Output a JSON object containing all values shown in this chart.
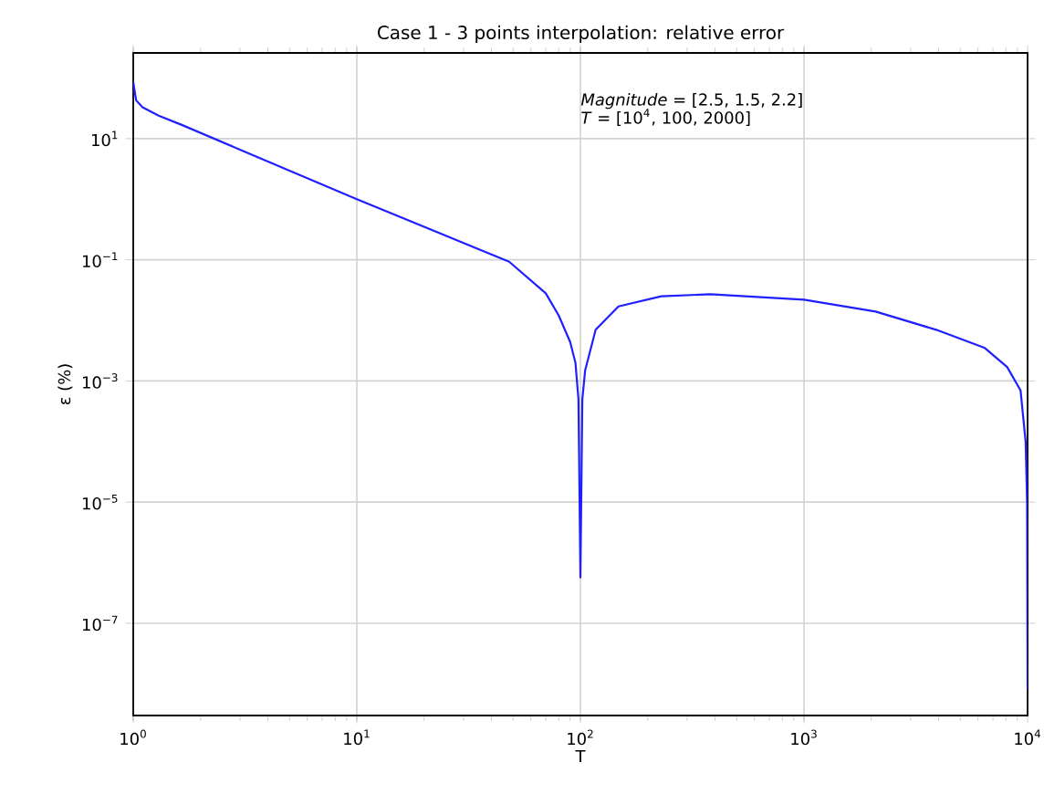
{
  "chart_data": {
    "type": "line",
    "title": "Case 1 - 3 points interpolation: relative error",
    "xlabel": "T",
    "ylabel": "ε  (%)",
    "log": "xy",
    "grid": true,
    "marker": "none",
    "line_style": "solid",
    "xlim": [
      1,
      10000
    ],
    "ylim": [
      3e-09,
      260
    ],
    "xticks": [
      {
        "value": 1,
        "label": "10$^{0}$"
      },
      {
        "value": 10,
        "label": "10$^{1}$"
      },
      {
        "value": 100,
        "label": "10$^{2}$"
      },
      {
        "value": 1000,
        "label": "10$^{3}$"
      },
      {
        "value": 10000,
        "label": "10$^{4}$"
      }
    ],
    "yticks": [
      {
        "value": 10,
        "label": "10$^{1}$"
      },
      {
        "value": 0.1,
        "label": "10$^{−1}$"
      },
      {
        "value": 0.001,
        "label": "10$^{−3}$"
      },
      {
        "value": 1e-05,
        "label": "10$^{−5}$"
      },
      {
        "value": 1e-07,
        "label": "10$^{−7}$"
      }
    ],
    "annotations": [
      "*Magnitude* = [2.5, 1.5, 2.2]",
      "*T* = [10$^{4}$, 100, 2000]"
    ],
    "series": [
      {
        "color": "#1f1fff",
        "x": [
          1,
          1.03,
          1.1,
          1.3,
          1.64,
          3,
          10,
          30,
          48,
          70,
          80,
          90,
          95,
          98,
          100,
          102,
          105,
          117,
          148,
          230,
          380,
          1000,
          2090,
          3900,
          6440,
          8100,
          9300,
          9800,
          9950,
          10000
        ],
        "values": [
          87,
          43,
          33,
          24,
          17,
          6.6,
          1,
          0.19,
          0.093,
          0.028,
          0.012,
          0.0044,
          0.002,
          0.0005,
          5.7e-07,
          0.0005,
          0.0015,
          0.007,
          0.017,
          0.025,
          0.027,
          0.022,
          0.014,
          0.007,
          0.0035,
          0.0017,
          0.0007,
          0.0001,
          1e-05,
          8e-09
        ]
      }
    ]
  }
}
